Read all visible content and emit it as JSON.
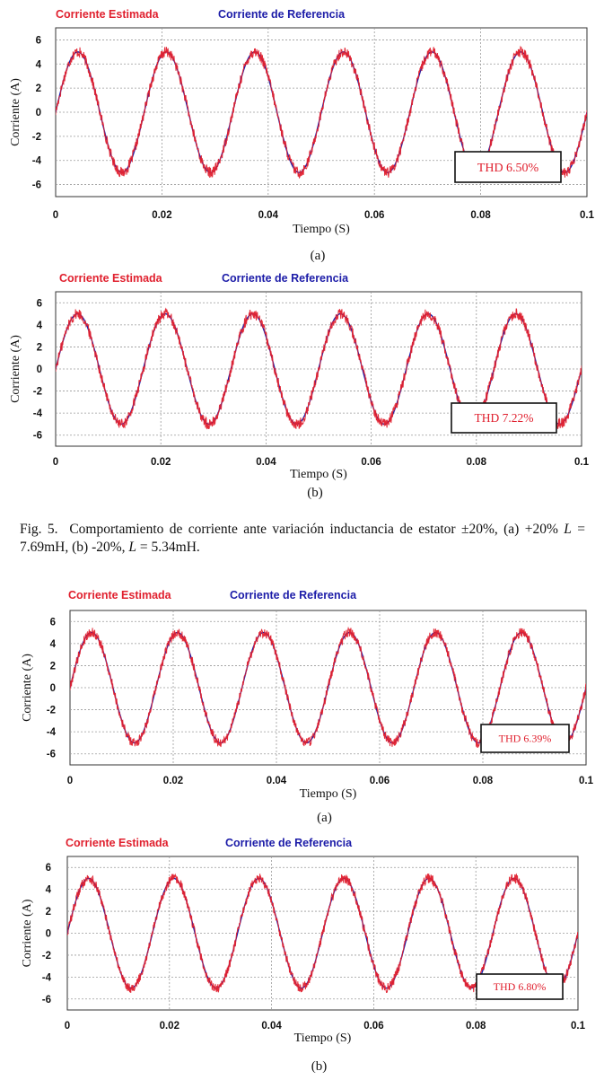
{
  "figure_caption": {
    "label": "Fig. 5.",
    "text": "Comportamiento de corriente ante variación inductancia de estator ±20%, (a) +20% ",
    "L1_symbol": "L",
    "L1_rest": " = 7.69mH, (b) -20%, ",
    "L2_symbol": "L",
    "L2_rest": " = 5.34mH."
  },
  "legend_labels": {
    "estimated": "Corriente Estimada",
    "reference": "Corriente de Referencia"
  },
  "colors": {
    "estimated": "#e0202e",
    "reference": "#1c1ca8",
    "grid": "#9a9a9a"
  },
  "chart_data": [
    {
      "type": "line",
      "subfigure_label": "(a)",
      "xlabel": "Tiempo (S)",
      "ylabel": "Corriente (A)",
      "xlim": [
        0,
        0.1
      ],
      "ylim": [
        -7,
        7
      ],
      "xticks": [
        "0",
        "0.02",
        "0.04",
        "0.06",
        "0.08",
        "0.1"
      ],
      "yticks": [
        "6",
        "4",
        "2",
        "0",
        "-2",
        "-4",
        "-6"
      ],
      "grid": true,
      "legend_position": "top-left",
      "series": [
        {
          "name": "Corriente Estimada",
          "amplitude": 5,
          "frequency_hz": 60,
          "noise_peak": 0.45
        },
        {
          "name": "Corriente de Referencia",
          "amplitude": 5,
          "frequency_hz": 60
        }
      ],
      "annotation": "THD 6.50%"
    },
    {
      "type": "line",
      "subfigure_label": "(b)",
      "xlabel": "Tiempo (S)",
      "ylabel": "Corriente (A)",
      "xlim": [
        0,
        0.1
      ],
      "ylim": [
        -7,
        7
      ],
      "xticks": [
        "0",
        "0.02",
        "0.04",
        "0.06",
        "0.08",
        "0.1"
      ],
      "yticks": [
        "6",
        "4",
        "2",
        "0",
        "-2",
        "-4",
        "-6"
      ],
      "grid": true,
      "legend_position": "top-left",
      "series": [
        {
          "name": "Corriente Estimada",
          "amplitude": 5,
          "frequency_hz": 60,
          "noise_peak": 0.5
        },
        {
          "name": "Corriente de Referencia",
          "amplitude": 5,
          "frequency_hz": 60
        }
      ],
      "annotation": "THD 7.22%"
    },
    {
      "type": "line",
      "subfigure_label": "(a)",
      "xlabel": "Tiempo (S)",
      "ylabel": "Corriente (A)",
      "xlim": [
        0,
        0.1
      ],
      "ylim": [
        -7,
        7
      ],
      "xticks": [
        "0",
        "0.02",
        "0.04",
        "0.06",
        "0.08",
        "0.1"
      ],
      "yticks": [
        "6",
        "4",
        "2",
        "0",
        "-2",
        "-4",
        "-6"
      ],
      "grid": true,
      "legend_position": "top-left",
      "series": [
        {
          "name": "Corriente Estimada",
          "amplitude": 5,
          "frequency_hz": 60,
          "noise_peak": 0.45
        },
        {
          "name": "Corriente de Referencia",
          "amplitude": 5,
          "frequency_hz": 60
        }
      ],
      "annotation": "THD 6.39%"
    },
    {
      "type": "line",
      "subfigure_label": "(b)",
      "xlabel": "Tiempo (S)",
      "ylabel": "Corriente (A)",
      "xlim": [
        0,
        0.1
      ],
      "ylim": [
        -7,
        7
      ],
      "xticks": [
        "0",
        "0.02",
        "0.04",
        "0.06",
        "0.08",
        "0.1"
      ],
      "yticks": [
        "6",
        "4",
        "2",
        "0",
        "-2",
        "-4",
        "-6"
      ],
      "grid": true,
      "legend_position": "top-left",
      "series": [
        {
          "name": "Corriente Estimada",
          "amplitude": 5,
          "frequency_hz": 60,
          "noise_peak": 0.45
        },
        {
          "name": "Corriente de Referencia",
          "amplitude": 5,
          "frequency_hz": 60
        }
      ],
      "annotation": "THD 6.80%"
    }
  ]
}
